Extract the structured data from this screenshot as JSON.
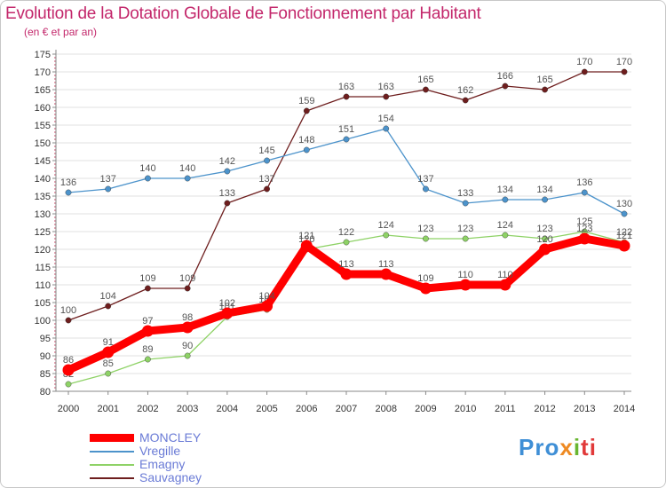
{
  "chart_data": {
    "type": "line",
    "title": "Evolution de la Dotation Globale de Fonctionnement par Habitant",
    "subtitle": "(en € et par an)",
    "x": [
      "2000",
      "2001",
      "2002",
      "2003",
      "2004",
      "2005",
      "2006",
      "2007",
      "2008",
      "2009",
      "2010",
      "2011",
      "2012",
      "2013",
      "2014"
    ],
    "ylim": [
      80,
      175
    ],
    "yticks": [
      80,
      85,
      90,
      95,
      100,
      105,
      110,
      115,
      120,
      125,
      130,
      135,
      140,
      145,
      150,
      155,
      160,
      165,
      170,
      175
    ],
    "grid": "horizontal",
    "series": [
      {
        "name": "Sauvagney",
        "color": "#6e1e1e",
        "values": [
          100,
          104,
          109,
          109,
          133,
          137,
          159,
          163,
          163,
          165,
          162,
          166,
          165,
          170,
          170
        ],
        "labels": [
          "100",
          "104",
          "109",
          "109",
          "133",
          "137",
          "159",
          "163",
          "163",
          "165",
          "162",
          "166",
          "165",
          "170",
          "170"
        ]
      },
      {
        "name": "Vregille",
        "color": "#4c93cb",
        "values": [
          136,
          137,
          140,
          140,
          142,
          145,
          148,
          151,
          154,
          137,
          133,
          134,
          134,
          136,
          130
        ],
        "labels": [
          "136",
          "137",
          "140",
          "140",
          "142",
          "145",
          "148",
          "151",
          "154",
          "137",
          "133",
          "134",
          "134",
          "136",
          "130"
        ]
      },
      {
        "name": "Emagny",
        "color": "#8ed266",
        "values": [
          82,
          85,
          89,
          90,
          101,
          103,
          120,
          122,
          124,
          123,
          123,
          124,
          123,
          125,
          122
        ],
        "labels": [
          "82",
          "85",
          "89",
          "90",
          "101",
          "103",
          "120",
          "122",
          "124",
          "123",
          "123",
          "124",
          "123",
          "125",
          "122"
        ]
      },
      {
        "name": "MONCLEY",
        "color": "#ff0000",
        "values": [
          86,
          91,
          97,
          98,
          102,
          104,
          121,
          113,
          113,
          109,
          110,
          110,
          120,
          123,
          121
        ],
        "labels": [
          "86",
          "91",
          "97",
          "98",
          "102",
          "104",
          "121",
          "113",
          "113",
          "109",
          "110",
          "110",
          "120",
          "123",
          "121"
        ]
      }
    ]
  },
  "legend": {
    "items": [
      {
        "label": "MONCLEY",
        "color": "#ff0000"
      },
      {
        "label": "Vregille",
        "color": "#4c93cb"
      },
      {
        "label": "Emagny",
        "color": "#8ed266"
      },
      {
        "label": "Sauvagney",
        "color": "#6e1e1e"
      }
    ]
  },
  "brand": {
    "p1": "Pro",
    "p2": "x",
    "p3": "i",
    "p4": "ti"
  }
}
